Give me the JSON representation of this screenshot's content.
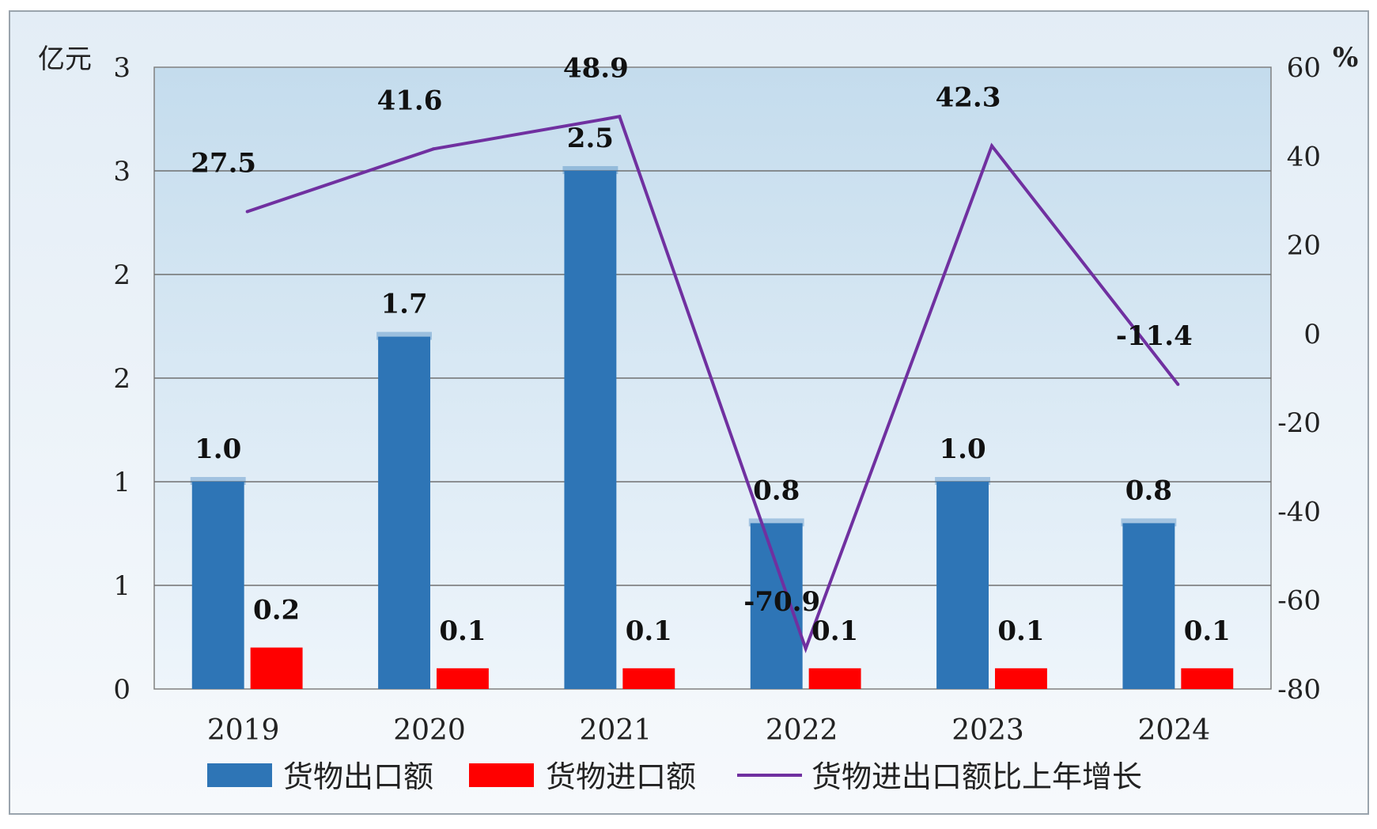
{
  "chart_data": {
    "type": "bar",
    "categories": [
      "2019",
      "2020",
      "2021",
      "2022",
      "2023",
      "2024"
    ],
    "y_left": {
      "unit": "亿元",
      "tick_labels": [
        "0",
        "1",
        "1",
        "2",
        "2",
        "3",
        "3"
      ],
      "ylim": [
        0,
        3
      ]
    },
    "y_right": {
      "unit": "%",
      "tick_labels": [
        "-80",
        "-60",
        "-40",
        "-20",
        "0",
        "20",
        "40",
        "60"
      ],
      "ylim": [
        -80,
        60
      ]
    },
    "series": [
      {
        "name": "货物出口额",
        "type": "bar",
        "axis": "left",
        "color": "#2E75B6",
        "values": [
          1.0,
          1.7,
          2.5,
          0.8,
          1.0,
          0.8
        ],
        "labels": [
          "1.0",
          "1.7",
          "2.5",
          "0.8",
          "1.0",
          "0.8"
        ]
      },
      {
        "name": "货物进口额",
        "type": "bar",
        "axis": "left",
        "color": "#FF0000",
        "values": [
          0.2,
          0.1,
          0.1,
          0.1,
          0.1,
          0.1
        ],
        "labels": [
          "0.2",
          "0.1",
          "0.1",
          "0.1",
          "0.1",
          "0.1"
        ]
      },
      {
        "name": "货物进出口额比上年增长",
        "type": "line",
        "axis": "right",
        "color": "#7030A0",
        "values": [
          27.5,
          41.6,
          48.9,
          -70.9,
          42.3,
          -11.4
        ],
        "labels": [
          "27.5",
          "41.6",
          "48.9",
          "-70.9",
          "42.3",
          "-11.4"
        ]
      }
    ],
    "grid": true,
    "legend_position": "bottom"
  }
}
